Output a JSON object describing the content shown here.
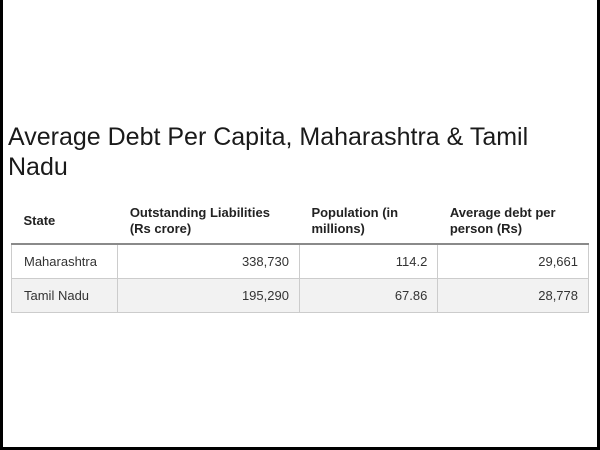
{
  "title": "Average Debt Per Capita, Maharashtra & Tamil Nadu",
  "table": {
    "headers": [
      "State",
      "Outstanding Liabilities (Rs crore)",
      "Population (in millions)",
      "Average debt per person (Rs)"
    ],
    "rows": [
      [
        "Maharashtra",
        "338,730",
        "114.2",
        "29,661"
      ],
      [
        "Tamil Nadu",
        "195,290",
        "67.86",
        "28,778"
      ]
    ]
  },
  "colors": {
    "header_rule": "#8a8a8a",
    "cell_border": "#cccccc",
    "alt_row_bg": "#f2f2f2",
    "frame_border": "#000000"
  }
}
